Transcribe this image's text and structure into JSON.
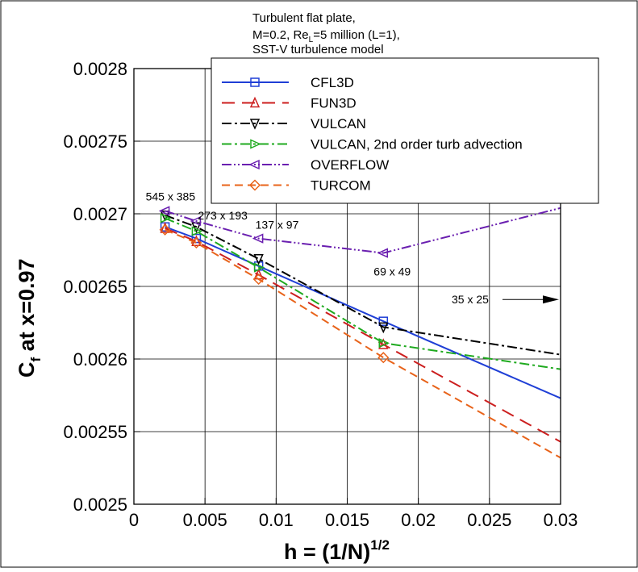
{
  "chart_data": {
    "type": "line",
    "title_lines": [
      "Turbulent flat plate,",
      "M=0.2, Re",
      "L",
      "=5 million (L=1),",
      "SST-V turbulence model"
    ],
    "xlabel": "h = (1/N)",
    "xlabel_sup": "1/2",
    "ylabel": "C",
    "ylabel_sub": "f",
    "ylabel_tail": " at x=0.97",
    "xlim": [
      0,
      0.03
    ],
    "ylim": [
      0.0025,
      0.0028
    ],
    "xticks": [
      0,
      0.005,
      0.01,
      0.015,
      0.02,
      0.025,
      0.03
    ],
    "xtick_labels": [
      "0",
      "0.005",
      "0.01",
      "0.015",
      "0.02",
      "0.025",
      "0.03"
    ],
    "yticks": [
      0.0025,
      0.00255,
      0.0026,
      0.00265,
      0.0027,
      0.00275,
      0.0028
    ],
    "ytick_labels": [
      "0.0025",
      "0.00255",
      "0.0026",
      "0.00265",
      "0.0027",
      "0.00275",
      "0.0028"
    ],
    "grid_x": [
      0.005,
      0.01,
      0.015,
      0.02,
      0.025
    ],
    "grid_y": [
      0.00255,
      0.0026,
      0.00265,
      0.0027,
      0.00275
    ],
    "legend_position": "top-right",
    "series": [
      {
        "name": "CFL3D",
        "color": "#1f3fd6",
        "dash": "",
        "marker": "square",
        "x": [
          0.00219,
          0.00439,
          0.00877,
          0.01754,
          0.03
        ],
        "y": [
          0.002691,
          0.002683,
          0.002664,
          0.002626,
          0.002573
        ]
      },
      {
        "name": "FUN3D",
        "color": "#cc1f1f",
        "dash": "16,9",
        "marker": "triangle-up",
        "x": [
          0.00219,
          0.00439,
          0.00877,
          0.01754,
          0.03
        ],
        "y": [
          0.00269,
          0.002681,
          0.002658,
          0.00261,
          0.002543
        ]
      },
      {
        "name": "VULCAN",
        "color": "#000000",
        "dash": "12,4,3,4",
        "marker": "triangle-down",
        "x": [
          0.00219,
          0.00439,
          0.00877,
          0.01754,
          0.03
        ],
        "y": [
          0.002699,
          0.002691,
          0.002669,
          0.002622,
          0.002603
        ]
      },
      {
        "name": "VULCAN, 2nd order turb advection",
        "color": "#1faa1f",
        "dash": "12,4,3,4",
        "marker": "triangle-right",
        "x": [
          0.00219,
          0.00439,
          0.00877,
          0.01754,
          0.03
        ],
        "y": [
          0.002697,
          0.002688,
          0.002663,
          0.002611,
          0.002593
        ]
      },
      {
        "name": "OVERFLOW",
        "color": "#6a1fb0",
        "dash": "12,3,2,3,2,3",
        "marker": "triangle-left",
        "x": [
          0.00219,
          0.00439,
          0.00877,
          0.01754,
          0.03
        ],
        "y": [
          0.002702,
          0.002695,
          0.002683,
          0.002673,
          0.002704
        ]
      },
      {
        "name": "TURCOM",
        "color": "#e8631a",
        "dash": "10,6",
        "marker": "diamond",
        "x": [
          0.00219,
          0.00439,
          0.00877,
          0.01754,
          0.03
        ],
        "y": [
          0.002689,
          0.00268,
          0.002655,
          0.002601,
          0.002532
        ]
      }
    ],
    "annotations": [
      {
        "text": "545 x 385",
        "x": 0.00219,
        "y": 0.002702
      },
      {
        "text": "273 x 193",
        "x": 0.00439,
        "y": 0.002695
      },
      {
        "text": "137 x 97",
        "x": 0.00877,
        "y": 0.002683
      },
      {
        "text": "69 x 49",
        "x": 0.01754,
        "y": 0.002673
      },
      {
        "text": "35 x 25",
        "x": 0.03,
        "y": 0.002641
      }
    ]
  }
}
